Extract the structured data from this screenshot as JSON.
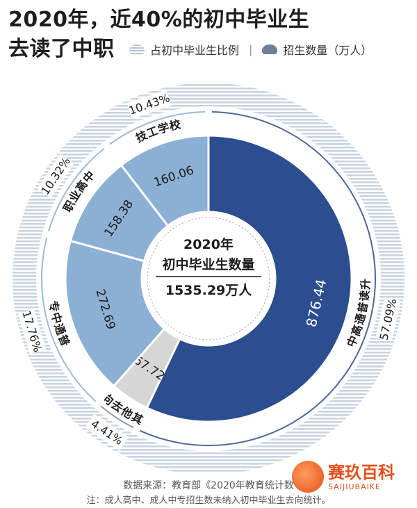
{
  "title": {
    "line1": "2020年，近40%的初中毕业生",
    "line2": "去读了中职"
  },
  "legend": {
    "ratio_label": "占初中毕业生比例",
    "count_label": "招生数量（万人）",
    "separator": "|"
  },
  "center": {
    "line1": "2020年",
    "line2": "初中毕业生数量",
    "value": "1535.29万人"
  },
  "colors": {
    "dark_blue": "#2c4d8f",
    "mid_blue": "#8cafd4",
    "light_gray": "#d6d6d6",
    "outer_stripe": "#c9d3e2",
    "background": "#ffffff"
  },
  "chart_data": {
    "type": "pie",
    "total": 1535.29,
    "unit": "万人",
    "categories": [
      "升读普通高中",
      "其他去向",
      "普通中专",
      "职业高中",
      "技工学校"
    ],
    "values": [
      876.44,
      67.72,
      272.69,
      158.38,
      160.06
    ],
    "percent_labels": [
      "57.09%",
      "4.41%",
      "17.76%",
      "10.32%",
      "10.43%"
    ],
    "value_labels": [
      "876.44",
      "67.72",
      "272.69",
      "158.38",
      "160.06"
    ]
  },
  "footer": {
    "source": "数据来源：教育部《2020年教育统计数",
    "note": "注：成人高中、成人中专招生数未纳入初中毕业生去向统计。"
  },
  "watermark": {
    "name": "赛玖百科",
    "latin": "SAIJIUBAIKE"
  }
}
